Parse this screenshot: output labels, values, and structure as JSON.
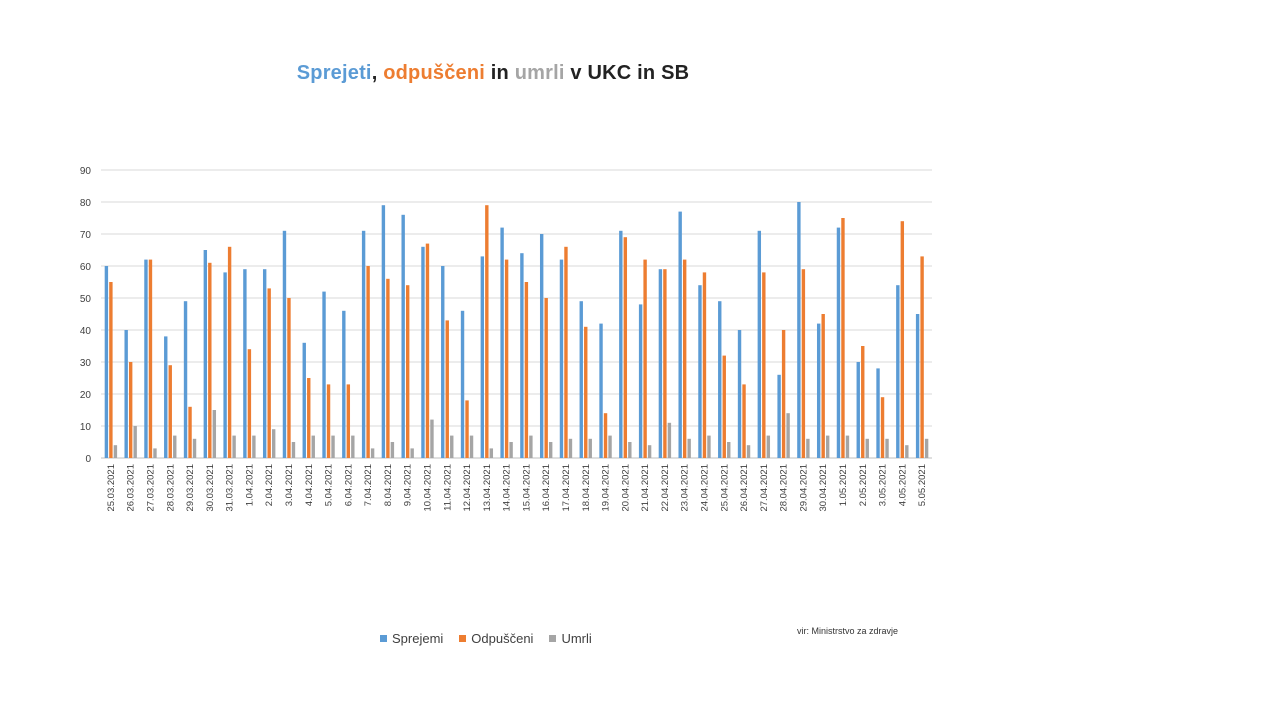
{
  "title": {
    "parts": [
      {
        "text": "Sprejeti",
        "color": "#5B9BD5"
      },
      {
        "text": ", ",
        "color": "#222222"
      },
      {
        "text": "odpuščeni",
        "color": "#ED7D31"
      },
      {
        "text": " in ",
        "color": "#222222"
      },
      {
        "text": "umrli",
        "color": "#A5A5A5"
      },
      {
        "text": " v UKC in SB",
        "color": "#222222"
      }
    ]
  },
  "source_note": "vir: Ministrstvo za zdravje",
  "legend": [
    {
      "label": "Sprejemi",
      "color": "#5B9BD5"
    },
    {
      "label": "Odpuščeni",
      "color": "#ED7D31"
    },
    {
      "label": "Umrli",
      "color": "#A5A5A5"
    }
  ],
  "chart_data": {
    "type": "bar",
    "title": "Sprejeti, odpuščeni in umrli v UKC in SB",
    "categories": [
      "25.03.2021",
      "26.03.2021",
      "27.03.2021",
      "28.03.2021",
      "29.03.2021",
      "30.03.2021",
      "31.03.2021",
      "1.04.2021",
      "2.04.2021",
      "3.04.2021",
      "4.04.2021",
      "5.04.2021",
      "6.04.2021",
      "7.04.2021",
      "8.04.2021",
      "9.04.2021",
      "10.04.2021",
      "11.04.2021",
      "12.04.2021",
      "13.04.2021",
      "14.04.2021",
      "15.04.2021",
      "16.04.2021",
      "17.04.2021",
      "18.04.2021",
      "19.04.2021",
      "20.04.2021",
      "21.04.2021",
      "22.04.2021",
      "23.04.2021",
      "24.04.2021",
      "25.04.2021",
      "26.04.2021",
      "27.04.2021",
      "28.04.2021",
      "29.04.2021",
      "30.04.2021",
      "1.05.2021",
      "2.05.2021",
      "3.05.2021",
      "4.05.2021",
      "5.05.2021"
    ],
    "series": [
      {
        "name": "Sprejemi",
        "color": "#5B9BD5",
        "values": [
          60,
          40,
          62,
          38,
          49,
          65,
          58,
          59,
          59,
          71,
          36,
          52,
          46,
          71,
          79,
          76,
          66,
          60,
          46,
          63,
          72,
          64,
          70,
          62,
          49,
          42,
          71,
          48,
          59,
          77,
          54,
          49,
          40,
          71,
          26,
          80,
          42,
          72,
          30,
          28,
          54,
          45
        ]
      },
      {
        "name": "Odpuščeni",
        "color": "#ED7D31",
        "values": [
          55,
          30,
          62,
          29,
          16,
          61,
          66,
          34,
          53,
          50,
          25,
          23,
          23,
          60,
          56,
          54,
          67,
          43,
          18,
          79,
          62,
          55,
          50,
          66,
          41,
          14,
          69,
          62,
          59,
          62,
          58,
          32,
          23,
          58,
          40,
          59,
          45,
          75,
          35,
          19,
          74,
          63
        ]
      },
      {
        "name": "Umrli",
        "color": "#A5A5A5",
        "values": [
          4,
          10,
          3,
          7,
          6,
          15,
          7,
          7,
          9,
          5,
          7,
          7,
          7,
          3,
          5,
          3,
          12,
          7,
          7,
          3,
          5,
          7,
          5,
          6,
          6,
          7,
          5,
          4,
          11,
          6,
          7,
          5,
          4,
          7,
          14,
          6,
          7,
          7,
          6,
          6,
          4,
          6
        ]
      }
    ],
    "ylim": [
      0,
      90
    ],
    "yticks": [
      0,
      10,
      20,
      30,
      40,
      50,
      60,
      70,
      80,
      90
    ],
    "grid": true,
    "legend_position": "bottom"
  }
}
